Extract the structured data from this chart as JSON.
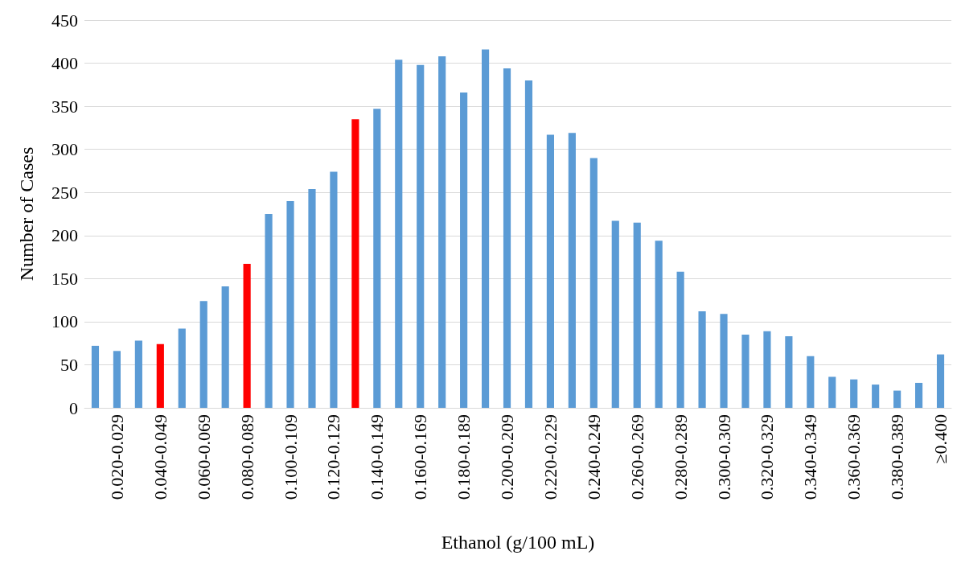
{
  "chart_data": {
    "type": "bar",
    "xlabel": "Ethanol (g/100 mL)",
    "ylabel": "Number of Cases",
    "categories": [
      null,
      "0.020-0.029",
      null,
      "0.040-0.049",
      null,
      "0.060-0.069",
      null,
      "0.080-0.089",
      null,
      "0.100-0.109",
      null,
      "0.120-0.129",
      null,
      "0.140-0.149",
      null,
      "0.160-0.169",
      null,
      "0.180-0.189",
      null,
      "0.200-0.209",
      null,
      "0.220-0.229",
      null,
      "0.240-0.249",
      null,
      "0.260-0.269",
      null,
      "0.280-0.289",
      null,
      "0.300-0.309",
      null,
      "0.320-0.329",
      null,
      "0.340-0.349",
      null,
      "0.360-0.369",
      null,
      "0.380-0.389",
      null,
      "≥0.400"
    ],
    "values": [
      72,
      66,
      78,
      74,
      92,
      124,
      141,
      167,
      225,
      240,
      254,
      274,
      335,
      347,
      404,
      398,
      408,
      366,
      416,
      394,
      380,
      317,
      319,
      290,
      217,
      215,
      194,
      158,
      112,
      109,
      85,
      89,
      83,
      60,
      36,
      33,
      27,
      20,
      29,
      62
    ],
    "colors": [
      "#5b9bd5",
      "#5b9bd5",
      "#5b9bd5",
      "#ff0000",
      "#5b9bd5",
      "#5b9bd5",
      "#5b9bd5",
      "#ff0000",
      "#5b9bd5",
      "#5b9bd5",
      "#5b9bd5",
      "#5b9bd5",
      "#ff0000",
      "#5b9bd5",
      "#5b9bd5",
      "#5b9bd5",
      "#5b9bd5",
      "#5b9bd5",
      "#5b9bd5",
      "#5b9bd5",
      "#5b9bd5",
      "#5b9bd5",
      "#5b9bd5",
      "#5b9bd5",
      "#5b9bd5",
      "#5b9bd5",
      "#5b9bd5",
      "#5b9bd5",
      "#5b9bd5",
      "#5b9bd5",
      "#5b9bd5",
      "#5b9bd5",
      "#5b9bd5",
      "#5b9bd5",
      "#5b9bd5",
      "#5b9bd5",
      "#5b9bd5",
      "#5b9bd5",
      "#5b9bd5",
      "#5b9bd5"
    ],
    "ylim": [
      0,
      450
    ],
    "yticks": [
      0,
      50,
      100,
      150,
      200,
      250,
      300,
      350,
      400,
      450
    ],
    "grid": "y"
  }
}
